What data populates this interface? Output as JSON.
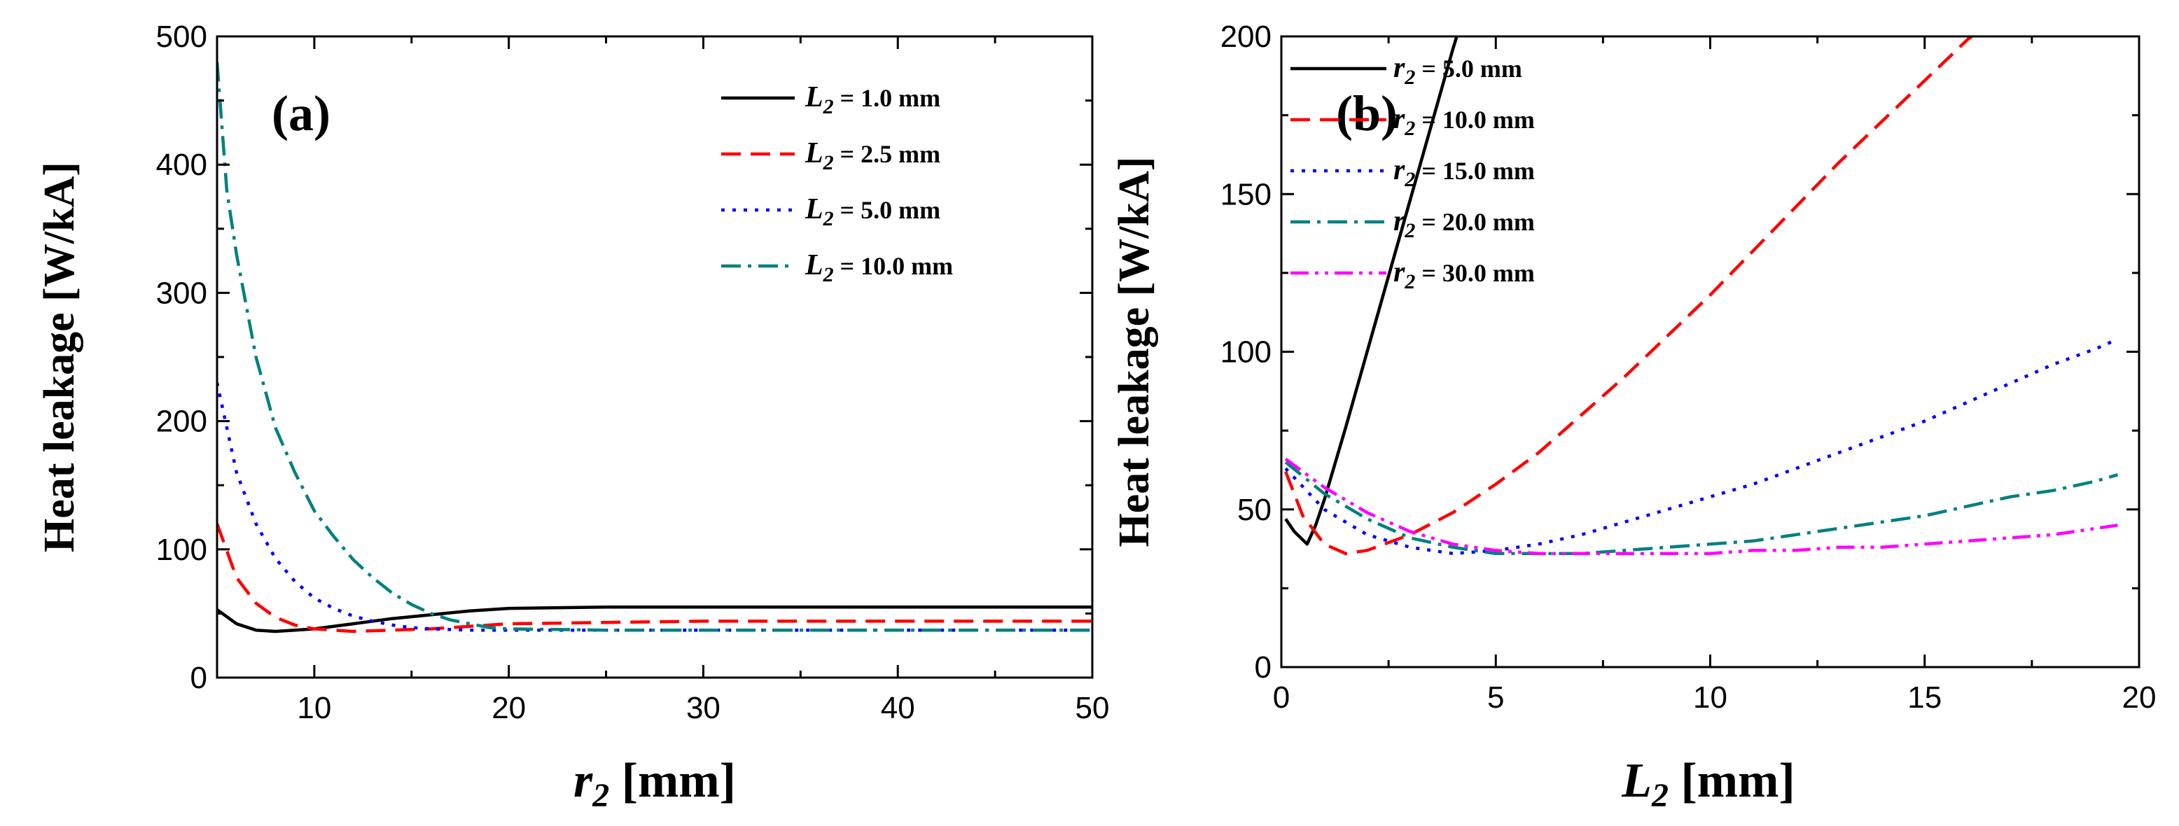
{
  "chart_data": [
    {
      "type": "line",
      "panel_label": "(a)",
      "xlabel_var": "r",
      "xlabel_sub": "2",
      "xlabel_unit": " [mm]",
      "ylabel": "Heat leakage [W/kA]",
      "xlim": [
        5,
        50
      ],
      "ylim": [
        0,
        500
      ],
      "xticks": [
        "10",
        "20",
        "30",
        "40",
        "50"
      ],
      "yticks": [
        "0",
        "100",
        "200",
        "300",
        "400",
        "500"
      ],
      "grid": false,
      "legend_position": "top-right",
      "series": [
        {
          "name_var": "L",
          "name_sub": "2",
          "name_rest": " = 1.0 mm",
          "color": "#000000",
          "dash": "solid",
          "x": [
            5,
            6,
            7,
            8,
            9,
            10,
            12,
            14,
            16,
            18,
            20,
            25,
            30,
            35,
            40,
            45,
            50
          ],
          "y": [
            53,
            42,
            37,
            36,
            37,
            38,
            42,
            46,
            49,
            52,
            54,
            55,
            55,
            55,
            55,
            55,
            55
          ]
        },
        {
          "name_var": "L",
          "name_sub": "2",
          "name_rest": " = 2.5 mm",
          "color": "#ff0000",
          "dash": "dashed",
          "x": [
            5,
            6,
            7,
            8,
            9,
            10,
            11,
            12,
            14,
            16,
            18,
            20,
            25,
            30,
            35,
            40,
            45,
            50
          ],
          "y": [
            120,
            78,
            58,
            47,
            41,
            38,
            37,
            36,
            37,
            38,
            40,
            42,
            43,
            44,
            44,
            44,
            44,
            44
          ]
        },
        {
          "name_var": "L",
          "name_sub": "2",
          "name_rest": " = 5.0 mm",
          "color": "#0000ff",
          "dash": "dotted",
          "x": [
            5,
            6,
            7,
            8,
            9,
            10,
            11,
            12,
            13,
            14,
            15,
            16,
            18,
            20,
            25,
            30,
            35,
            40,
            45,
            50
          ],
          "y": [
            230,
            160,
            120,
            93,
            75,
            62,
            54,
            48,
            44,
            41,
            39,
            38,
            37,
            37,
            37,
            37,
            37,
            37,
            37,
            37
          ]
        },
        {
          "name_var": "L",
          "name_sub": "2",
          "name_rest": " = 10.0 mm",
          "color": "#008080",
          "dash": "dashdot",
          "x": [
            5,
            5.5,
            6,
            7,
            8,
            9,
            10,
            11,
            12,
            13,
            14,
            15,
            16,
            17,
            18,
            19,
            20,
            25,
            30,
            35,
            40,
            45,
            50
          ],
          "y": [
            480,
            380,
            330,
            250,
            195,
            160,
            130,
            110,
            92,
            78,
            66,
            57,
            50,
            45,
            42,
            39,
            38,
            37,
            37,
            37,
            37,
            37,
            37
          ]
        }
      ]
    },
    {
      "type": "line",
      "panel_label": "(b)",
      "xlabel_var": "L",
      "xlabel_sub": "2",
      "xlabel_unit": " [mm]",
      "ylabel": "Heat leakage [W/kA]",
      "xlim": [
        0,
        20
      ],
      "ylim": [
        0,
        200
      ],
      "xticks": [
        "0",
        "5",
        "10",
        "15",
        "20"
      ],
      "yticks": [
        "0",
        "50",
        "100",
        "150",
        "200"
      ],
      "grid": false,
      "legend_position": "top-left",
      "series": [
        {
          "name_var": "r",
          "name_sub": "2",
          "name_rest": " = 5.0 mm",
          "color": "#000000",
          "dash": "solid",
          "x": [
            0.1,
            0.3,
            0.6,
            0.8,
            1.0,
            1.5,
            2.0,
            2.5,
            3.0,
            3.5,
            4.0,
            4.2
          ],
          "y": [
            47,
            43,
            39,
            45,
            53,
            76,
            100,
            124,
            148,
            172,
            196,
            205
          ]
        },
        {
          "name_var": "r",
          "name_sub": "2",
          "name_rest": " = 10.0 mm",
          "color": "#ff0000",
          "dash": "dashed",
          "x": [
            0.1,
            0.5,
            1.0,
            1.5,
            2.0,
            3.0,
            4.0,
            5.0,
            6.0,
            7.0,
            8.0,
            9.0,
            10.0,
            11.0,
            12.0,
            13.0,
            14.0,
            15.0,
            16.0,
            16.6
          ],
          "y": [
            62,
            48,
            39,
            36,
            37,
            42,
            49,
            58,
            68,
            80,
            92,
            105,
            118,
            132,
            146,
            160,
            173,
            186,
            199,
            205
          ]
        },
        {
          "name_var": "r",
          "name_sub": "2",
          "name_rest": " = 15.0 mm",
          "color": "#0000ff",
          "dash": "dotted",
          "x": [
            0.1,
            1,
            2,
            3,
            4,
            5,
            6,
            7,
            8,
            9,
            10,
            11,
            12,
            13,
            14,
            15,
            16,
            17,
            18,
            19,
            19.5
          ],
          "y": [
            63,
            50,
            42,
            38,
            36,
            37,
            39,
            42,
            46,
            50,
            54,
            58,
            63,
            68,
            73,
            78,
            84,
            90,
            96,
            101,
            104
          ]
        },
        {
          "name_var": "r",
          "name_sub": "2",
          "name_rest": " = 20.0 mm",
          "color": "#008080",
          "dash": "dashdot",
          "x": [
            0.1,
            1,
            2,
            3,
            4,
            5,
            6,
            7,
            8,
            9,
            10,
            11,
            12,
            13,
            14,
            15,
            16,
            17,
            18,
            19,
            19.5
          ],
          "y": [
            65,
            55,
            47,
            41,
            38,
            36,
            36,
            36,
            37,
            38,
            39,
            40,
            42,
            44,
            46,
            48,
            51,
            54,
            56,
            59,
            61
          ]
        },
        {
          "name_var": "r",
          "name_sub": "2",
          "name_rest": " = 30.0 mm",
          "color": "#ff00ff",
          "dash": "dashdotdot",
          "x": [
            0.1,
            1,
            2,
            3,
            4,
            5,
            6,
            7,
            8,
            9,
            10,
            11,
            12,
            13,
            14,
            15,
            16,
            17,
            18,
            19,
            19.5
          ],
          "y": [
            66,
            57,
            49,
            43,
            39,
            37,
            36,
            36,
            36,
            36,
            36,
            37,
            37,
            38,
            38,
            39,
            40,
            41,
            42,
            44,
            45
          ]
        }
      ]
    }
  ]
}
